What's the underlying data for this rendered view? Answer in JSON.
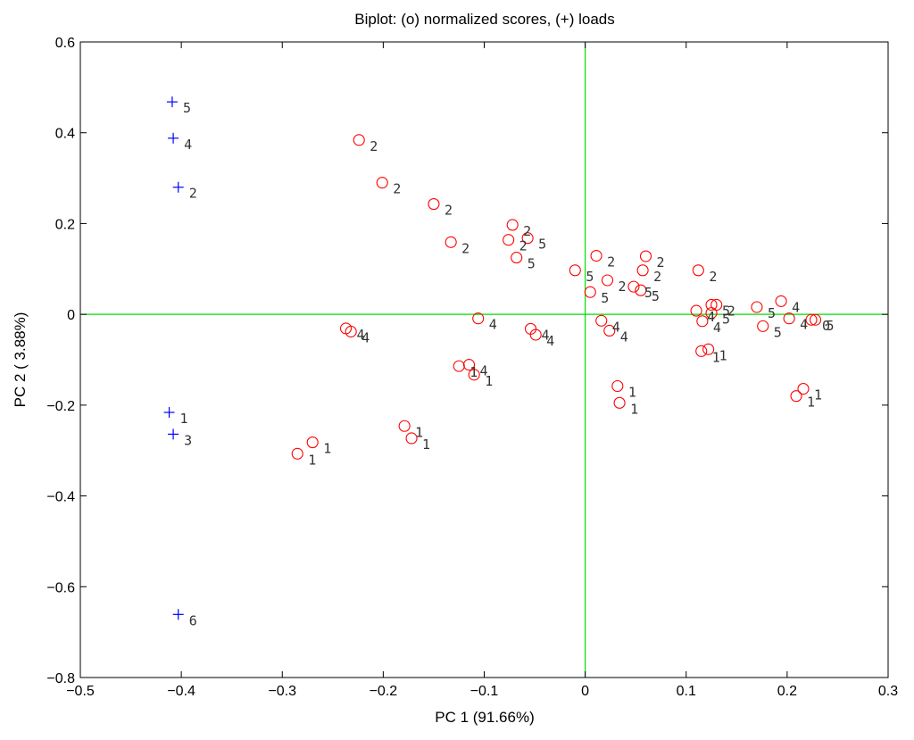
{
  "chart_data": {
    "type": "scatter",
    "title": "Biplot: (o) normalized scores, (+) loads",
    "xlabel": "PC 1 (91.66%)",
    "ylabel": "PC 2 ( 3.88%)",
    "xlim": [
      -0.5,
      0.3
    ],
    "ylim": [
      -0.8,
      0.6
    ],
    "x_ticks": [
      -0.5,
      -0.4,
      -0.3,
      -0.2,
      -0.1,
      0,
      0.1,
      0.2,
      0.3
    ],
    "x_tick_labels": [
      "−0.5",
      "−0.4",
      "−0.3",
      "−0.2",
      "−0.1",
      "0",
      "0.1",
      "0.2",
      "0.3"
    ],
    "y_ticks": [
      -0.8,
      -0.6,
      -0.4,
      -0.2,
      0,
      0.2,
      0.4,
      0.6
    ],
    "y_tick_labels": [
      "−0.8",
      "−0.6",
      "−0.4",
      "−0.2",
      "0",
      "0.2",
      "0.4",
      "0.6"
    ],
    "grid": false,
    "zero_lines_color": "#00dd00",
    "colors": {
      "scores": "#ff0000",
      "loads": "#0000ff"
    },
    "series": [
      {
        "marker": "o",
        "points": [
          {
            "x": -0.224,
            "y": 0.384,
            "label": "2"
          },
          {
            "x": -0.201,
            "y": 0.29,
            "label": "2"
          },
          {
            "x": -0.15,
            "y": 0.243,
            "label": "2"
          },
          {
            "x": -0.133,
            "y": 0.159,
            "label": "2"
          },
          {
            "x": -0.072,
            "y": 0.197,
            "label": "2"
          },
          {
            "x": -0.076,
            "y": 0.164,
            "label": "2"
          },
          {
            "x": -0.057,
            "y": 0.168,
            "label": "5"
          },
          {
            "x": -0.068,
            "y": 0.125,
            "label": "5"
          },
          {
            "x": -0.01,
            "y": 0.097,
            "label": "5"
          },
          {
            "x": 0.005,
            "y": 0.049,
            "label": "5"
          },
          {
            "x": 0.011,
            "y": 0.129,
            "label": "2"
          },
          {
            "x": 0.022,
            "y": 0.075,
            "label": "2"
          },
          {
            "x": 0.06,
            "y": 0.128,
            "label": "2"
          },
          {
            "x": 0.057,
            "y": 0.097,
            "label": "2"
          },
          {
            "x": 0.048,
            "y": 0.061,
            "label": "5"
          },
          {
            "x": 0.055,
            "y": 0.053,
            "label": "5"
          },
          {
            "x": 0.112,
            "y": 0.097,
            "label": "2"
          },
          {
            "x": 0.11,
            "y": 0.008,
            "label": "4"
          },
          {
            "x": 0.125,
            "y": 0.021,
            "label": "5"
          },
          {
            "x": 0.13,
            "y": 0.021,
            "label": "2"
          },
          {
            "x": 0.125,
            "y": 0.003,
            "label": "5"
          },
          {
            "x": 0.116,
            "y": -0.015,
            "label": "4"
          },
          {
            "x": 0.17,
            "y": 0.016,
            "label": "5"
          },
          {
            "x": 0.194,
            "y": 0.029,
            "label": "4"
          },
          {
            "x": 0.176,
            "y": -0.026,
            "label": "5"
          },
          {
            "x": 0.202,
            "y": -0.009,
            "label": "4"
          },
          {
            "x": 0.224,
            "y": -0.012,
            "label": "0"
          },
          {
            "x": 0.228,
            "y": -0.012,
            "label": "5"
          },
          {
            "x": -0.237,
            "y": -0.031,
            "label": "4"
          },
          {
            "x": -0.232,
            "y": -0.038,
            "label": "4"
          },
          {
            "x": -0.106,
            "y": -0.009,
            "label": "4"
          },
          {
            "x": -0.054,
            "y": -0.032,
            "label": "4"
          },
          {
            "x": -0.049,
            "y": -0.045,
            "label": "4"
          },
          {
            "x": 0.016,
            "y": -0.014,
            "label": "4"
          },
          {
            "x": 0.024,
            "y": -0.036,
            "label": "4"
          },
          {
            "x": -0.125,
            "y": -0.114,
            "label": "1"
          },
          {
            "x": -0.115,
            "y": -0.111,
            "label": "4"
          },
          {
            "x": -0.11,
            "y": -0.133,
            "label": "1"
          },
          {
            "x": 0.115,
            "y": -0.081,
            "label": "1"
          },
          {
            "x": 0.122,
            "y": -0.077,
            "label": "1"
          },
          {
            "x": 0.032,
            "y": -0.158,
            "label": "1"
          },
          {
            "x": 0.034,
            "y": -0.195,
            "label": "1"
          },
          {
            "x": 0.216,
            "y": -0.164,
            "label": "1"
          },
          {
            "x": 0.209,
            "y": -0.18,
            "label": "1"
          },
          {
            "x": -0.179,
            "y": -0.246,
            "label": "1"
          },
          {
            "x": -0.172,
            "y": -0.273,
            "label": "1"
          },
          {
            "x": -0.27,
            "y": -0.282,
            "label": "1"
          },
          {
            "x": -0.285,
            "y": -0.307,
            "label": "1"
          }
        ]
      },
      {
        "marker": "+",
        "points": [
          {
            "x": -0.409,
            "y": 0.468,
            "label": "5"
          },
          {
            "x": -0.408,
            "y": 0.388,
            "label": "4"
          },
          {
            "x": -0.403,
            "y": 0.28,
            "label": "2"
          },
          {
            "x": -0.412,
            "y": -0.216,
            "label": "1"
          },
          {
            "x": -0.408,
            "y": -0.264,
            "label": "3"
          },
          {
            "x": -0.403,
            "y": -0.661,
            "label": "6"
          }
        ]
      }
    ]
  }
}
